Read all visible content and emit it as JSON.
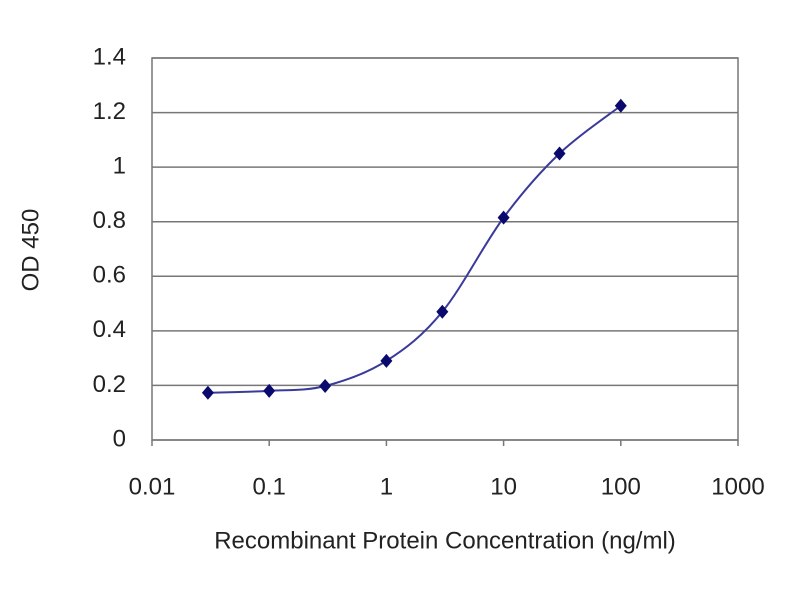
{
  "chart_data": {
    "type": "line",
    "x_label": "Recombinant Protein Concentration (ng/ml)",
    "y_label": "OD 450",
    "x": [
      0.03,
      0.1,
      0.3,
      1,
      3,
      10,
      30,
      100
    ],
    "series": [
      {
        "name": "OD 450",
        "color": "#3a3a9a",
        "marker_color": "#0a0a6e",
        "values": [
          0.173,
          0.18,
          0.198,
          0.29,
          0.47,
          0.815,
          1.05,
          1.225
        ]
      }
    ],
    "x_log": true,
    "xlim": [
      0.01,
      1000
    ],
    "xticks": [
      0.01,
      0.1,
      1,
      10,
      100,
      1000
    ],
    "ylim": [
      0,
      1.4
    ],
    "yticks": [
      0,
      0.2,
      0.4,
      0.6,
      0.8,
      1,
      1.2,
      1.4
    ],
    "grid": true
  }
}
